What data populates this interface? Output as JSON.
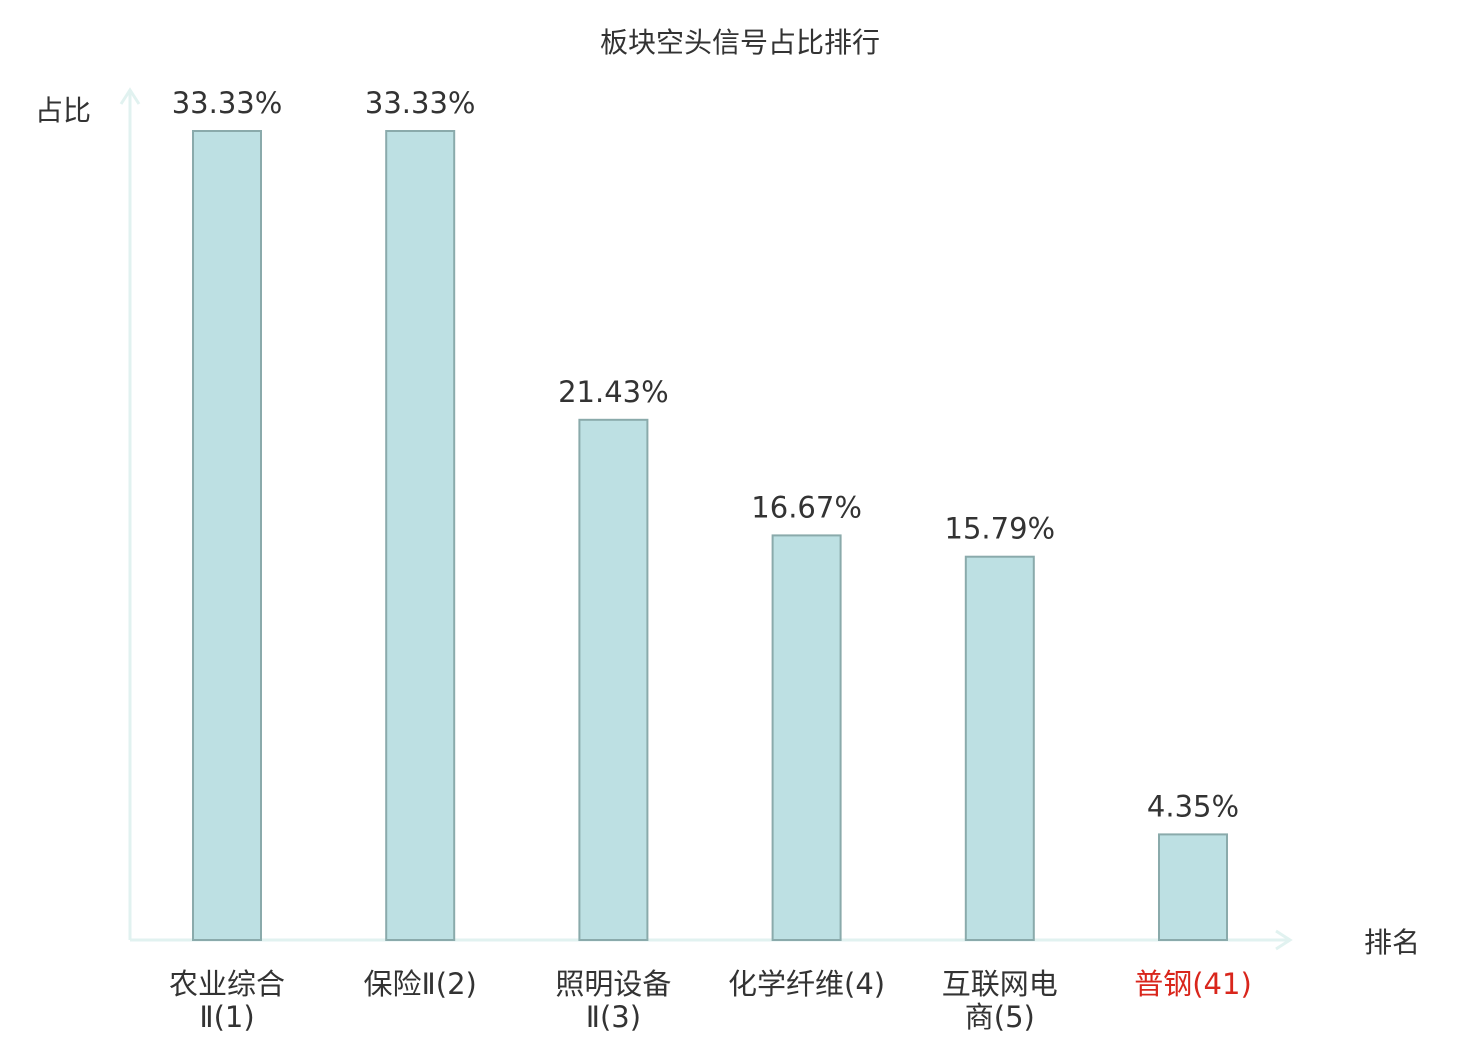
{
  "chart_data": {
    "type": "bar",
    "title": "板块空头信号占比排行",
    "ylabel": "占比",
    "xlabel": "排名",
    "ylim": [
      0,
      35
    ],
    "grid": false,
    "legend": "none",
    "categories": [
      {
        "lines": [
          "农业综合",
          "Ⅱ(1)"
        ],
        "highlight": false
      },
      {
        "lines": [
          "保险Ⅱ(2)"
        ],
        "highlight": false
      },
      {
        "lines": [
          "照明设备",
          "Ⅱ(3)"
        ],
        "highlight": false
      },
      {
        "lines": [
          "化学纤维(4)"
        ],
        "highlight": false
      },
      {
        "lines": [
          "互联网电",
          "商(5)"
        ],
        "highlight": false
      },
      {
        "lines": [
          "普钢(41)"
        ],
        "highlight": true
      }
    ],
    "values": [
      33.33,
      33.33,
      21.43,
      16.67,
      15.79,
      4.35
    ],
    "value_labels": [
      "33.33%",
      "33.33%",
      "21.43%",
      "16.67%",
      "15.79%",
      "4.35%"
    ],
    "colors": {
      "bar_fill": "#bde0e3",
      "bar_stroke": "#8aaaab",
      "axis": "#e1f2f0",
      "text": "#333333",
      "highlight_text": "#d9261c"
    }
  }
}
